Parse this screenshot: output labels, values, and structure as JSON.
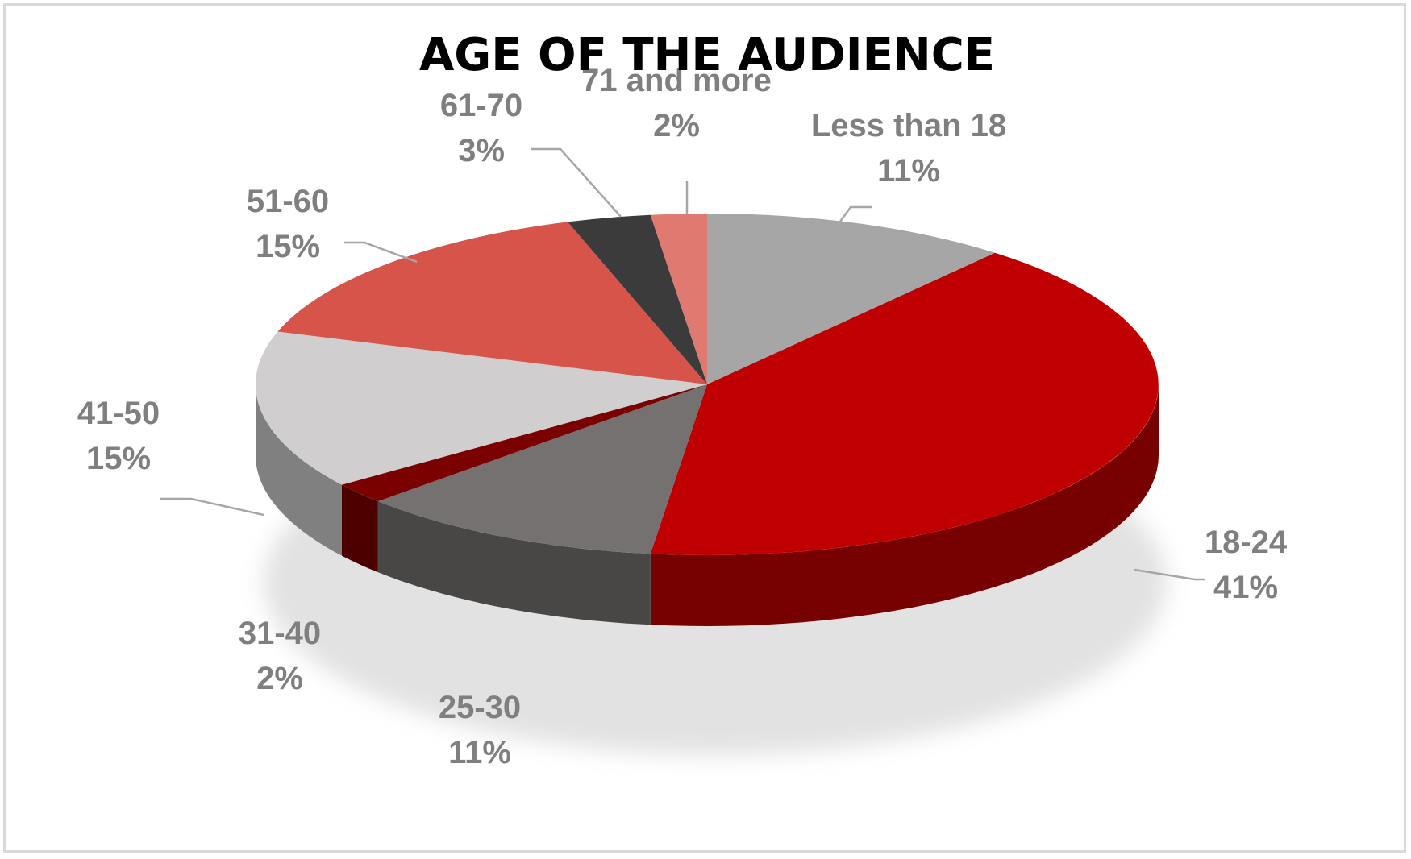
{
  "chart_data": {
    "type": "pie",
    "title": "AGE OF THE AUDIENCE",
    "categories": [
      "Less than 18",
      "18-24",
      "25-30",
      "31-40",
      "41-50",
      "51-60",
      "61-70",
      "71 and more"
    ],
    "values": [
      11,
      41,
      11,
      2,
      15,
      15,
      3,
      2
    ],
    "value_labels": [
      "11%",
      "41%",
      "11%",
      "2%",
      "15%",
      "15%",
      "3%",
      "2%"
    ],
    "colors": [
      "#a6a6a6",
      "#c00000",
      "#757171",
      "#7b0000",
      "#d0cece",
      "#d6544a",
      "#3b3b3b",
      "#e07a70"
    ],
    "units": "%",
    "legend": "none",
    "style": "3d"
  }
}
